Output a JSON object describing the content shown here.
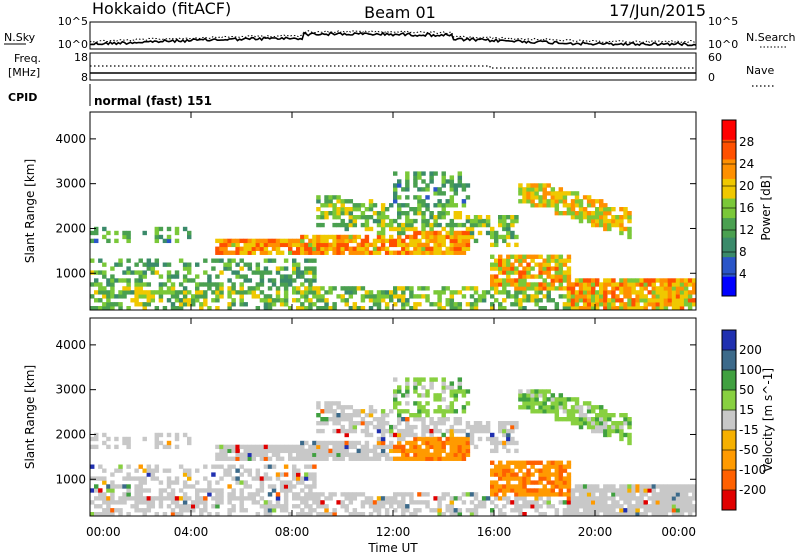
{
  "header": {
    "station": "Hokkaido (fitACF)",
    "beam": "Beam 01",
    "date": "17/Jun/2015"
  },
  "noise_panel": {
    "left_label": "N.Sky",
    "right_label": "N.Search",
    "left_ticks": [
      "10^5",
      "10^0"
    ],
    "right_ticks": [
      "10^5",
      "10^0"
    ]
  },
  "freq_panel": {
    "label_line1": "Freq.",
    "label_line2": "[MHz]",
    "right_label": "Nave",
    "left_ticks": [
      "18",
      "8"
    ],
    "right_ticks": [
      "60",
      "0"
    ]
  },
  "cpid": {
    "label": "CPID",
    "value": "normal (fast) 151"
  },
  "colors": {
    "power": [
      "#0000ff",
      "#2a55c8",
      "#3a8a6a",
      "#4aa050",
      "#7ac838",
      "#f0c800",
      "#ff9000",
      "#ff5000",
      "#ff0000"
    ],
    "velocity": [
      "#e00000",
      "#ff6000",
      "#ff9a00",
      "#f5b000",
      "#c8c8c8",
      "#88d040",
      "#40a040",
      "#3c6a8a",
      "#2030b0"
    ]
  },
  "chart_data": [
    {
      "type": "heatmap",
      "title": "Power",
      "xlabel": "Time UT",
      "ylabel": "Slant Range [km]",
      "xlim": [
        "00:00",
        "24:00"
      ],
      "x_ticks": [
        "00:00",
        "04:00",
        "08:00",
        "12:00",
        "16:00",
        "20:00",
        "00:00"
      ],
      "ylim": [
        180,
        4600
      ],
      "y_ticks": [
        "1000",
        "2000",
        "3000",
        "4000"
      ],
      "colorbar": {
        "label": "Power [dB]",
        "range": [
          0,
          32
        ],
        "ticks": [
          "4",
          "8",
          "12",
          "16",
          "20",
          "24",
          "28"
        ]
      }
    },
    {
      "type": "heatmap",
      "title": "Velocity",
      "xlabel": "Time UT",
      "ylabel": "Slant Range [km]",
      "xlim": [
        "00:00",
        "24:00"
      ],
      "x_ticks": [
        "00:00",
        "04:00",
        "08:00",
        "12:00",
        "16:00",
        "20:00",
        "00:00"
      ],
      "ylim": [
        180,
        4600
      ],
      "y_ticks": [
        "1000",
        "2000",
        "3000",
        "4000"
      ],
      "colorbar": {
        "label": "Velocity [m s^-1]",
        "ticks": [
          "200",
          "100",
          "50",
          "15",
          "-15",
          "-50",
          "-100",
          "-200"
        ]
      }
    }
  ]
}
